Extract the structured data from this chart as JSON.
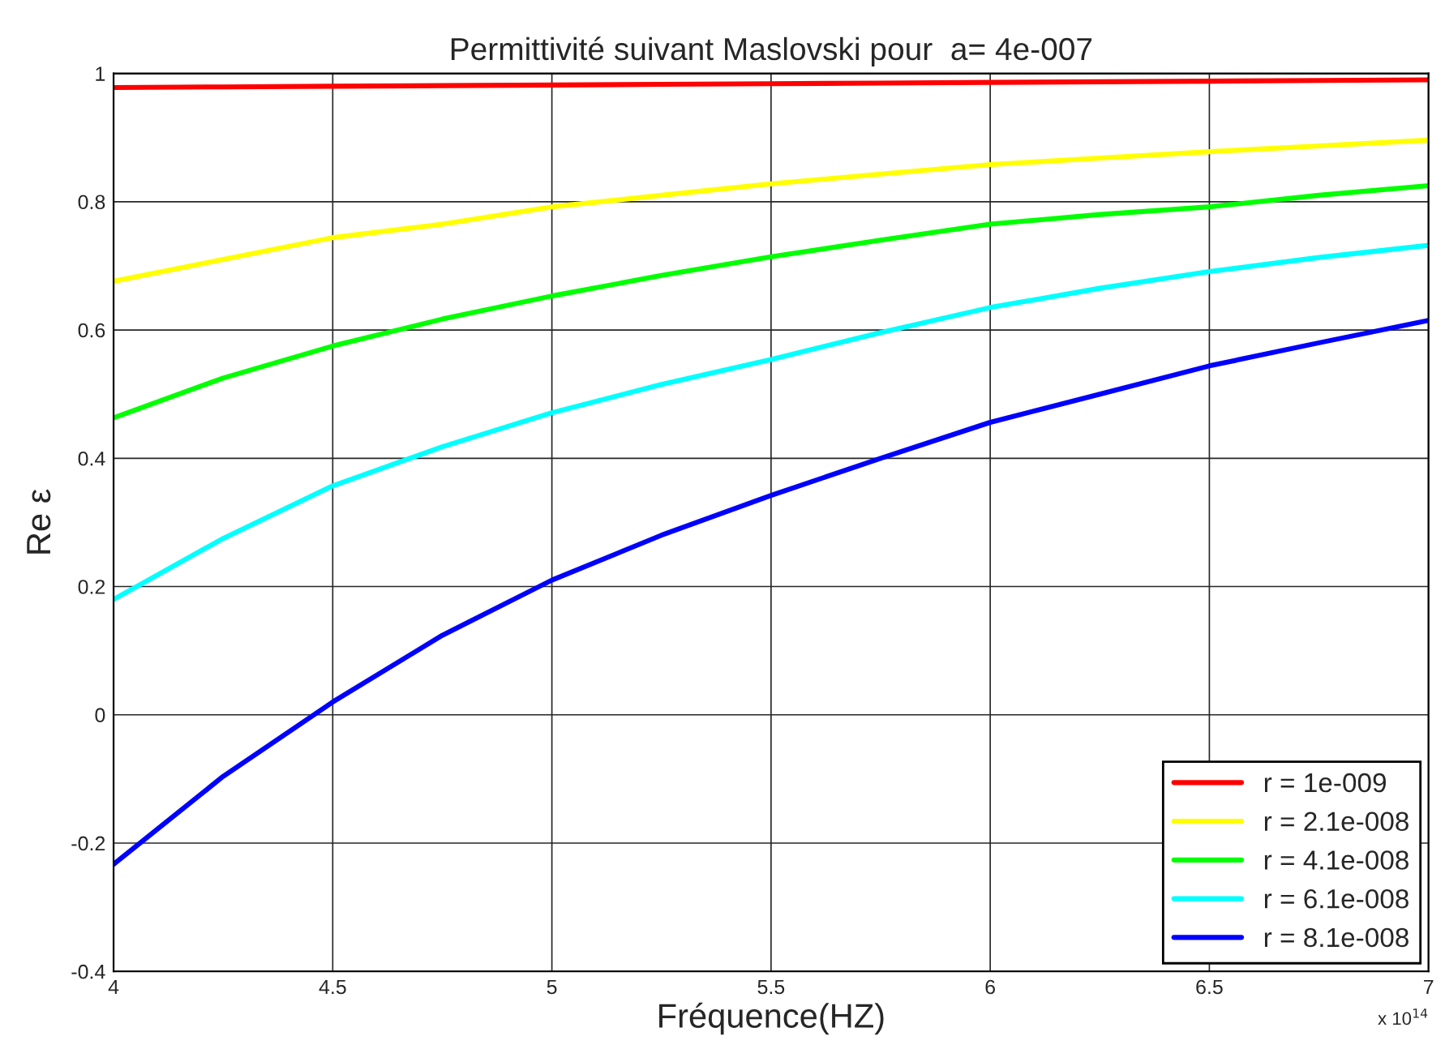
{
  "chart_data": {
    "type": "line",
    "title": "Permittivité suivant Maslovski pour  a= 4e-007",
    "xlabel": "Fréquence(HZ)",
    "ylabel": "Re ε",
    "x": [
      4,
      4.25,
      4.5,
      4.75,
      5,
      5.25,
      5.5,
      5.75,
      6,
      6.25,
      6.5,
      6.75,
      7
    ],
    "series": [
      {
        "name": "r = 1e-009",
        "color": "#ff0000",
        "values": [
          0.978,
          0.979,
          0.98,
          0.981,
          0.982,
          0.983,
          0.984,
          0.985,
          0.986,
          0.987,
          0.988,
          0.989,
          0.99
        ]
      },
      {
        "name": "r = 2.1e-008",
        "color": "#ffff00",
        "values": [
          0.676,
          0.71,
          0.744,
          0.765,
          0.792,
          0.81,
          0.828,
          0.843,
          0.858,
          0.868,
          0.878,
          0.887,
          0.896
        ]
      },
      {
        "name": "r = 4.1e-008",
        "color": "#00ff00",
        "values": [
          0.463,
          0.525,
          0.575,
          0.617,
          0.653,
          0.685,
          0.714,
          0.74,
          0.765,
          0.78,
          0.792,
          0.81,
          0.825
        ]
      },
      {
        "name": "r = 6.1e-008",
        "color": "#00ffff",
        "values": [
          0.18,
          0.275,
          0.357,
          0.418,
          0.471,
          0.515,
          0.554,
          0.596,
          0.635,
          0.665,
          0.691,
          0.713,
          0.732
        ]
      },
      {
        "name": "r = 8.1e-008",
        "color": "#0000ff",
        "values": [
          -0.233,
          -0.096,
          0.02,
          0.124,
          0.21,
          0.28,
          0.342,
          0.4,
          0.456,
          0.5,
          0.544,
          0.58,
          0.615
        ]
      }
    ],
    "xlim": [
      4,
      7
    ],
    "xticks": [
      4,
      4.5,
      5,
      5.5,
      6,
      6.5,
      7
    ],
    "ylim": [
      -0.4,
      1
    ],
    "yticks": [
      {
        "value": -0.4,
        "label": "-0.4"
      },
      {
        "value": -0.2,
        "label": "-0.2"
      },
      0,
      0.2,
      0.4,
      0.6,
      0.8,
      1
    ],
    "annotations": [
      "x 10$^{14}$"
    ],
    "grid": true,
    "legend": "bottom right",
    "marker": "none",
    "line_style": "solid"
  }
}
